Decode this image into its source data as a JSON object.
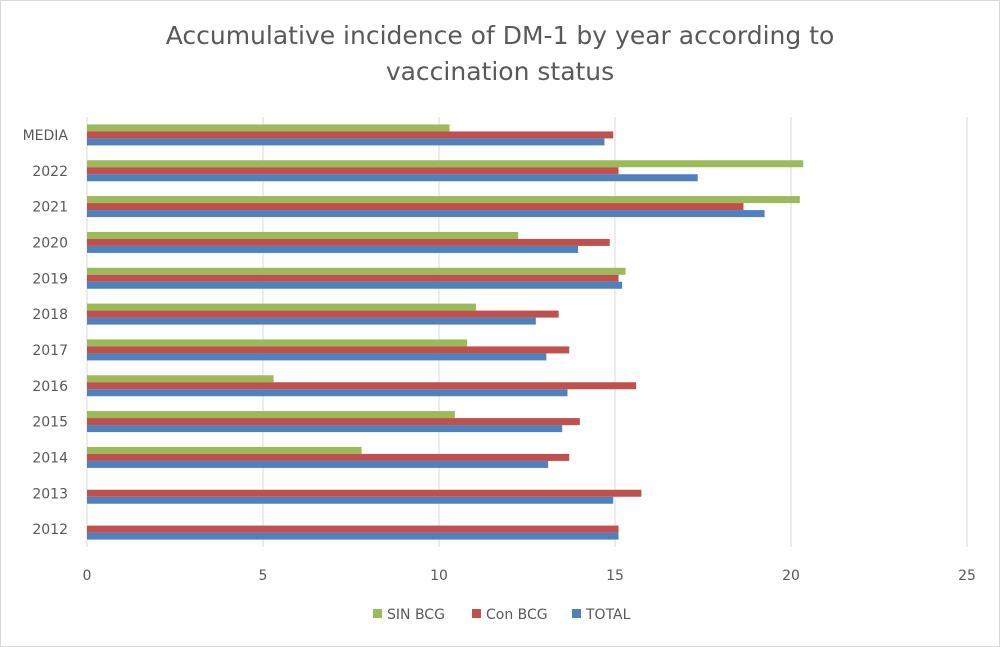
{
  "chart_data": {
    "type": "bar",
    "orientation": "horizontal",
    "title": "Accumulative incidence of DM-1 by year according to vaccination status",
    "categories": [
      "MEDIA",
      "2022",
      "2021",
      "2020",
      "2019",
      "2018",
      "2017",
      "2016",
      "2015",
      "2014",
      "2013",
      "2012"
    ],
    "series": [
      {
        "name": "SIN BCG",
        "color": "#9bbb59",
        "values": [
          10.3,
          20.35,
          20.25,
          12.25,
          15.3,
          11.05,
          10.8,
          5.3,
          10.45,
          7.8,
          null,
          null
        ]
      },
      {
        "name": "Con BCG",
        "color": "#c0504d",
        "values": [
          14.95,
          15.1,
          18.65,
          14.85,
          15.1,
          13.4,
          13.7,
          15.6,
          14.0,
          13.7,
          15.75,
          15.1
        ]
      },
      {
        "name": "TOTAL",
        "color": "#4f81bd",
        "values": [
          14.7,
          17.35,
          19.25,
          13.95,
          15.2,
          12.75,
          13.05,
          13.65,
          13.5,
          13.1,
          14.95,
          15.1
        ]
      }
    ],
    "xlim": [
      0,
      25
    ],
    "xticks": [
      "0",
      "5",
      "10",
      "15",
      "20",
      "25"
    ],
    "grid": "vertical",
    "legend": "bottom"
  }
}
